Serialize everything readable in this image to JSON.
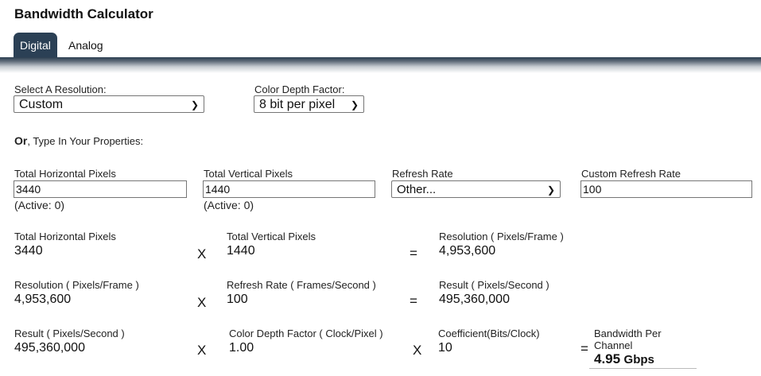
{
  "title": "Bandwidth Calculator",
  "tabs": [
    {
      "label": "Digital",
      "active": true
    },
    {
      "label": "Analog",
      "active": false
    }
  ],
  "accent": "#2b4055",
  "resolution_select": {
    "label": "Select A Resolution:",
    "value": "Custom"
  },
  "color_depth_select": {
    "label": "Color Depth Factor:",
    "value": "8 bit per pixel"
  },
  "or_text": {
    "bold": "Or",
    "rest": ", Type In Your Properties:"
  },
  "inputs": {
    "horizontal": {
      "label": "Total Horizontal Pixels",
      "value": "3440",
      "note": "(Active: 0)"
    },
    "vertical": {
      "label": "Total Vertical Pixels",
      "value": "1440",
      "note": "(Active: 0)"
    },
    "refresh": {
      "label": "Refresh Rate",
      "value": "Other..."
    },
    "custom_refresh": {
      "label": "Custom Refresh Rate",
      "value": "100"
    }
  },
  "calc": {
    "row1": {
      "a_label": "Total Horizontal Pixels",
      "a": "3440",
      "op": "X",
      "b_label": "Total Vertical Pixels",
      "b": "1440",
      "eq": "=",
      "r_label": "Resolution ( Pixels/Frame )",
      "r": "4,953,600"
    },
    "row2": {
      "a_label": "Resolution ( Pixels/Frame )",
      "a": "4,953,600",
      "op": "X",
      "b_label": "Refresh Rate ( Frames/Second )",
      "b": "100",
      "eq": "=",
      "r_label": "Result ( Pixels/Second )",
      "r": "495,360,000"
    },
    "row3": {
      "a_label": "Result ( Pixels/Second )",
      "a": "495,360,000",
      "op": "X",
      "b_label": "Color Depth Factor ( Clock/Pixel )",
      "b": "1.00",
      "op2": "X",
      "c_label": "Coefficient(Bits/Clock)",
      "c": "10",
      "eq": "=",
      "r_label": "Bandwidth Per Channel",
      "r": "4.95",
      "r_unit": "Gbps"
    }
  }
}
